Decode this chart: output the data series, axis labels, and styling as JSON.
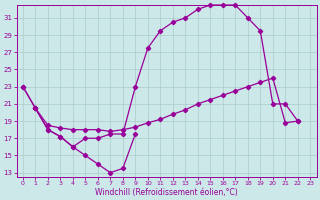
{
  "xlabel": "Windchill (Refroidissement éolien,°C)",
  "bg_color": "#cce8e8",
  "grid_color": "#aacccc",
  "line_color": "#990099",
  "xlim": [
    -0.5,
    23.5
  ],
  "ylim": [
    12.5,
    32.5
  ],
  "yticks": [
    13,
    15,
    17,
    19,
    21,
    23,
    25,
    27,
    29,
    31
  ],
  "xticks": [
    0,
    1,
    2,
    3,
    4,
    5,
    6,
    7,
    8,
    9,
    10,
    11,
    12,
    13,
    14,
    15,
    16,
    17,
    18,
    19,
    20,
    21,
    22,
    23
  ],
  "line1_x": [
    0,
    1,
    2,
    3,
    4,
    5,
    6,
    7,
    8,
    9
  ],
  "line1_y": [
    23,
    20.5,
    18,
    17.2,
    16.0,
    15.0,
    14.0,
    13.0,
    13.5,
    17.5
  ],
  "line2_x": [
    0,
    1,
    2,
    3,
    4,
    5,
    6,
    7,
    8,
    9,
    10,
    11,
    12,
    13,
    14,
    15,
    16,
    17,
    18,
    19,
    20,
    21,
    22
  ],
  "line2_y": [
    23,
    20.5,
    18,
    17.2,
    16.0,
    17.0,
    17.0,
    17.5,
    17.5,
    23.0,
    27.5,
    29.5,
    30.5,
    31.0,
    32.0,
    32.5,
    32.5,
    32.5,
    31.0,
    29.5,
    21.0,
    21.0,
    19.0
  ],
  "line3_x": [
    1,
    2,
    3,
    4,
    5,
    6,
    7,
    8,
    9,
    10,
    11,
    12,
    13,
    14,
    15,
    16,
    17,
    18,
    19,
    20,
    21,
    22
  ],
  "line3_y": [
    20.5,
    18.5,
    18.2,
    18.0,
    18.0,
    18.0,
    17.8,
    18.0,
    18.3,
    18.8,
    19.2,
    19.8,
    20.3,
    21.0,
    21.5,
    22.0,
    22.5,
    23.0,
    23.5,
    24.0,
    18.8,
    19.0
  ]
}
